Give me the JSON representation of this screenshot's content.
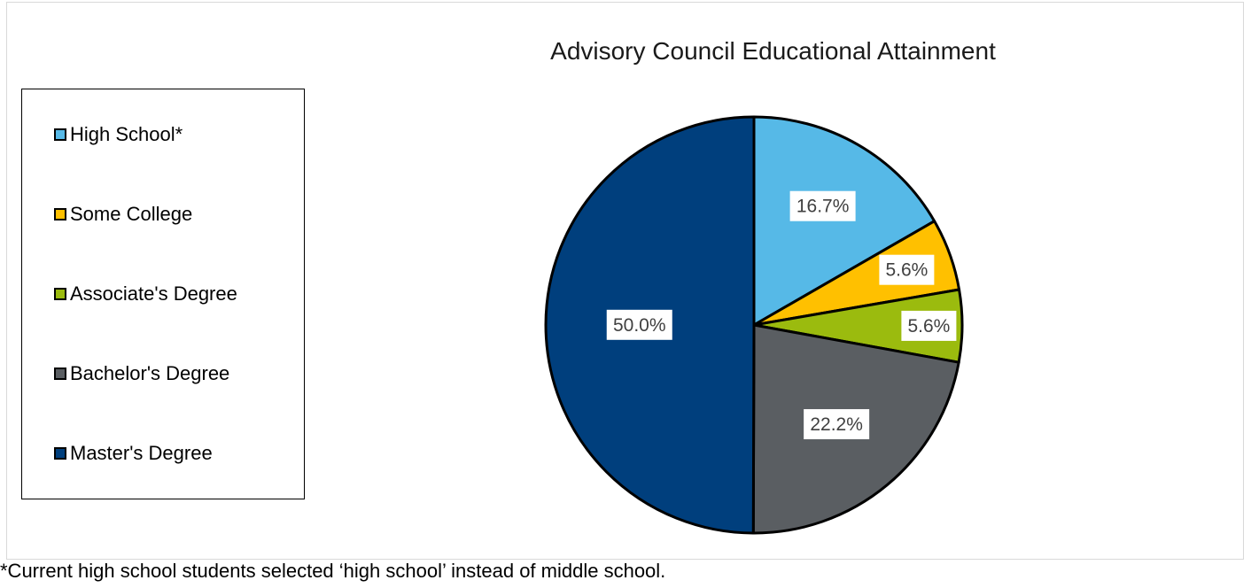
{
  "chart_data": {
    "type": "pie",
    "title": "Advisory Council Educational Attainment",
    "categories": [
      "High School*",
      "Some College",
      "Associate's Degree",
      "Bachelor's Degree",
      "Master's Degree"
    ],
    "values": [
      16.7,
      5.6,
      5.6,
      22.2,
      50.0
    ],
    "data_labels": [
      "16.7%",
      "5.6%",
      "5.6%",
      "22.2%",
      "50.0%"
    ],
    "colors": [
      "#56b9e7",
      "#ffc000",
      "#9bbb0e",
      "#5a5e62",
      "#003f7d"
    ],
    "legend_position": "left",
    "start_angle": "12 o'clock, clockwise"
  },
  "footnote": "*Current high school students selected ‘high school’ instead of middle school."
}
